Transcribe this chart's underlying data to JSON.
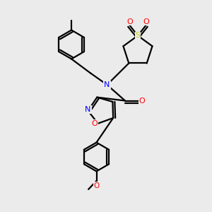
{
  "bg_color": "#ebebeb",
  "line_color": "#000000",
  "atom_colors": {
    "N": "#0000FF",
    "O": "#FF0000",
    "S": "#cccc00",
    "C": "#000000"
  },
  "lw": 1.6
}
